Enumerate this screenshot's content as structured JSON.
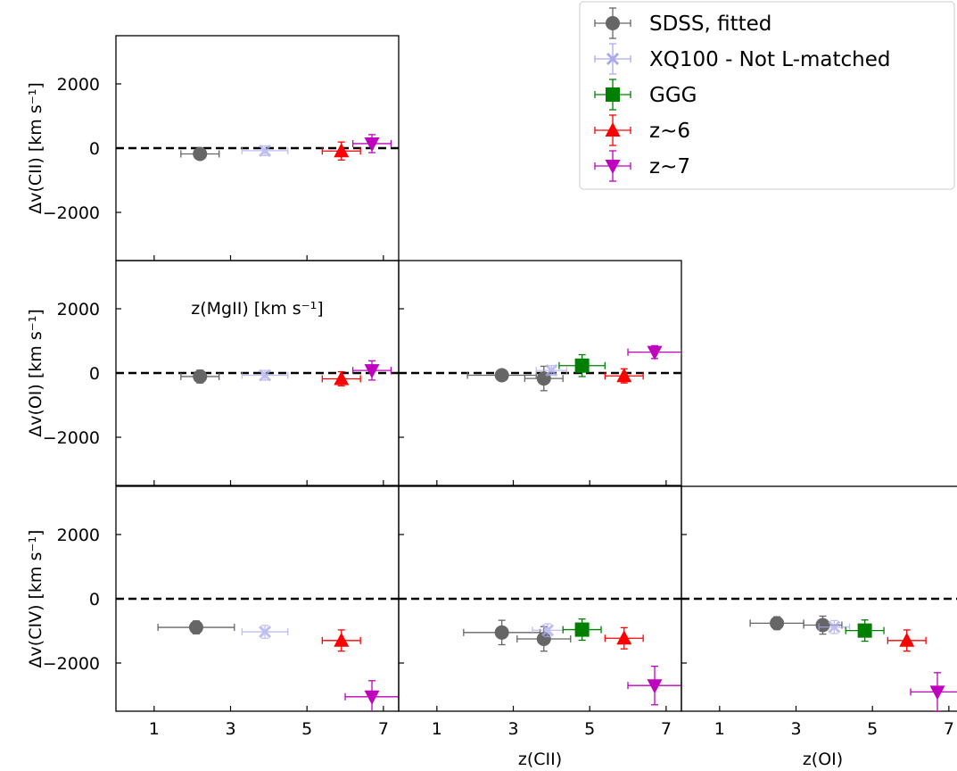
{
  "chart_data": [
    {
      "type": "scatter",
      "panel": "MgII vs CII",
      "xlabel": "z(MgII) [km s⁻¹]",
      "ylabel": "Δv(CII) [km s⁻¹]",
      "xlim": [
        0,
        7.4
      ],
      "ylim": [
        -3500,
        3500
      ],
      "xticks": [
        1,
        3,
        5,
        7
      ],
      "yticks": [
        -2000,
        0,
        2000
      ],
      "series": [
        {
          "name": "SDSS, fitted",
          "points": [
            {
              "x": 2.2,
              "y": -180,
              "xerr": 0.5,
              "yerr": 90
            }
          ]
        },
        {
          "name": "XQ100 - Not L-matched",
          "points": [
            {
              "x": 3.9,
              "y": -80,
              "xerr": 0.6,
              "yerr": 150
            }
          ]
        },
        {
          "name": "z~6",
          "points": [
            {
              "x": 5.9,
              "y": -90,
              "xerr": 0.5,
              "yerr": 280
            }
          ]
        },
        {
          "name": "z~7",
          "points": [
            {
              "x": 6.7,
              "y": 140,
              "xerr": 0.5,
              "yerr": 280
            }
          ]
        }
      ]
    },
    {
      "type": "scatter",
      "panel": "MgII vs OI",
      "ylabel": "Δv(OI) [km s⁻¹]",
      "xlim": [
        0,
        7.4
      ],
      "ylim": [
        -3500,
        3500
      ],
      "series": [
        {
          "name": "SDSS, fitted",
          "points": [
            {
              "x": 2.2,
              "y": -110,
              "xerr": 0.5,
              "yerr": 200
            }
          ]
        },
        {
          "name": "XQ100 - Not L-matched",
          "points": [
            {
              "x": 3.9,
              "y": -70,
              "xerr": 0.6,
              "yerr": 150
            }
          ]
        },
        {
          "name": "z~6",
          "points": [
            {
              "x": 5.9,
              "y": -180,
              "xerr": 0.5,
              "yerr": 220
            }
          ]
        },
        {
          "name": "z~7",
          "points": [
            {
              "x": 6.7,
              "y": 80,
              "xerr": 0.5,
              "yerr": 300
            }
          ]
        }
      ]
    },
    {
      "type": "scatter",
      "panel": "CII vs OI",
      "xlim": [
        0,
        7.4
      ],
      "ylim": [
        -3500,
        3500
      ],
      "series": [
        {
          "name": "SDSS, fitted",
          "points": [
            {
              "x": 2.7,
              "y": -70,
              "xerr": 0.9,
              "yerr": 100
            },
            {
              "x": 3.8,
              "y": -170,
              "xerr": 0.5,
              "yerr": 380
            }
          ]
        },
        {
          "name": "XQ100 - Not L-matched",
          "points": [
            {
              "x": 4.0,
              "y": 80,
              "xerr": 0.4,
              "yerr": 150
            }
          ]
        },
        {
          "name": "GGG",
          "points": [
            {
              "x": 4.8,
              "y": 230,
              "xerr": 0.6,
              "yerr": 340
            }
          ]
        },
        {
          "name": "z~6",
          "points": [
            {
              "x": 5.9,
              "y": -90,
              "xerr": 0.5,
              "yerr": 220
            }
          ]
        },
        {
          "name": "z~7",
          "points": [
            {
              "x": 6.7,
              "y": 650,
              "xerr": 0.7,
              "yerr": 200
            }
          ]
        }
      ]
    },
    {
      "type": "scatter",
      "panel": "MgII vs CIV",
      "ylabel": "Δv(CIV) [km s⁻¹]",
      "xlim": [
        0,
        7.4
      ],
      "ylim": [
        -3500,
        3500
      ],
      "series": [
        {
          "name": "SDSS, fitted",
          "points": [
            {
              "x": 2.1,
              "y": -890,
              "xerr": 1.0,
              "yerr": 200
            }
          ]
        },
        {
          "name": "XQ100 - Not L-matched",
          "points": [
            {
              "x": 3.9,
              "y": -1030,
              "xerr": 0.6,
              "yerr": 200
            }
          ]
        },
        {
          "name": "z~6",
          "points": [
            {
              "x": 5.9,
              "y": -1300,
              "xerr": 0.5,
              "yerr": 330
            }
          ]
        },
        {
          "name": "z~7",
          "points": [
            {
              "x": 6.7,
              "y": -3050,
              "xerr": 0.7,
              "yerr": 500
            }
          ]
        }
      ]
    },
    {
      "type": "scatter",
      "panel": "CII vs CIV",
      "xlabel": "z(CII)",
      "xlim": [
        0,
        7.4
      ],
      "ylim": [
        -3500,
        3500
      ],
      "series": [
        {
          "name": "SDSS, fitted",
          "points": [
            {
              "x": 2.7,
              "y": -1050,
              "xerr": 1.0,
              "yerr": 380
            },
            {
              "x": 3.8,
              "y": -1250,
              "xerr": 0.7,
              "yerr": 380
            }
          ]
        },
        {
          "name": "XQ100 - Not L-matched",
          "points": [
            {
              "x": 3.9,
              "y": -980,
              "xerr": 0.4,
              "yerr": 200
            }
          ]
        },
        {
          "name": "GGG",
          "points": [
            {
              "x": 4.8,
              "y": -960,
              "xerr": 0.5,
              "yerr": 330
            }
          ]
        },
        {
          "name": "z~6",
          "points": [
            {
              "x": 5.9,
              "y": -1230,
              "xerr": 0.5,
              "yerr": 330
            }
          ]
        },
        {
          "name": "z~7",
          "points": [
            {
              "x": 6.7,
              "y": -2700,
              "xerr": 0.7,
              "yerr": 600
            }
          ]
        }
      ]
    },
    {
      "type": "scatter",
      "panel": "OI vs CIV",
      "xlabel": "z(OI)",
      "xlim": [
        0,
        7.4
      ],
      "ylim": [
        -3500,
        3500
      ],
      "series": [
        {
          "name": "SDSS, fitted",
          "points": [
            {
              "x": 2.5,
              "y": -760,
              "xerr": 0.7,
              "yerr": 200
            },
            {
              "x": 3.7,
              "y": -820,
              "xerr": 0.5,
              "yerr": 280
            }
          ]
        },
        {
          "name": "XQ100 - Not L-matched",
          "points": [
            {
              "x": 4.0,
              "y": -880,
              "xerr": 0.4,
              "yerr": 200
            }
          ]
        },
        {
          "name": "GGG",
          "points": [
            {
              "x": 4.8,
              "y": -990,
              "xerr": 0.5,
              "yerr": 330
            }
          ]
        },
        {
          "name": "z~6",
          "points": [
            {
              "x": 5.9,
              "y": -1300,
              "xerr": 0.5,
              "yerr": 330
            }
          ]
        },
        {
          "name": "z~7",
          "points": [
            {
              "x": 6.7,
              "y": -2900,
              "xerr": 0.7,
              "yerr": 600
            }
          ]
        }
      ]
    }
  ],
  "legend": {
    "placement": "top-right",
    "entries": [
      {
        "label": "SDSS, fitted",
        "marker": "circle",
        "color": "#666666"
      },
      {
        "label": "XQ100 - Not L-matched",
        "marker": "x",
        "color": "#aaaaee"
      },
      {
        "label": "GGG",
        "marker": "square",
        "color": "#008000"
      },
      {
        "label": "z~6",
        "marker": "triangle-up",
        "color": "#ff0000"
      },
      {
        "label": "z~7",
        "marker": "triangle-down",
        "color": "#bf00bf"
      }
    ]
  },
  "reference_line": {
    "y": 0,
    "style": "dashed",
    "color": "#000000"
  }
}
